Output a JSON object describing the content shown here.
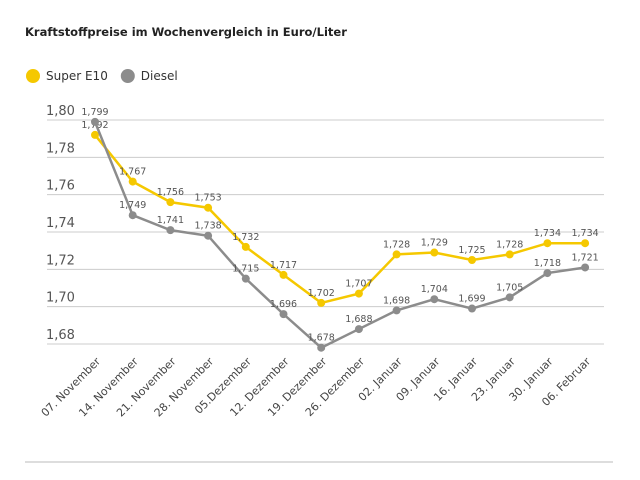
{
  "chart_data": {
    "type": "line",
    "title": "Kraftstoffpreise im Wochenvergleich in Euro/Liter",
    "xlabel": "",
    "ylabel": "",
    "ylim": [
      1.68,
      1.8
    ],
    "yticks": [
      "1,80",
      "1,78",
      "1,76",
      "1,74",
      "1,72",
      "1,70",
      "1,68"
    ],
    "grid": true,
    "legend_position": "top-left",
    "categories": [
      "07. November",
      "14. November",
      "21. November",
      "28. November",
      "05.Dezember",
      "12. Dezember",
      "19. Dezember",
      "26. Dezember",
      "02. Januar",
      "09. Januar",
      "16. Januar",
      "23. Januar",
      "30. Januar",
      "06. Februar"
    ],
    "series": [
      {
        "name": "Super E10",
        "color": "#f5c800",
        "values": [
          1.792,
          1.767,
          1.756,
          1.753,
          1.732,
          1.717,
          1.702,
          1.707,
          1.728,
          1.729,
          1.725,
          1.728,
          1.734,
          1.734
        ]
      },
      {
        "name": "Diesel",
        "color": "#8c8c8c",
        "values": [
          1.799,
          1.749,
          1.741,
          1.738,
          1.715,
          1.696,
          1.678,
          1.688,
          1.698,
          1.704,
          1.699,
          1.705,
          1.718,
          1.721
        ]
      }
    ]
  }
}
